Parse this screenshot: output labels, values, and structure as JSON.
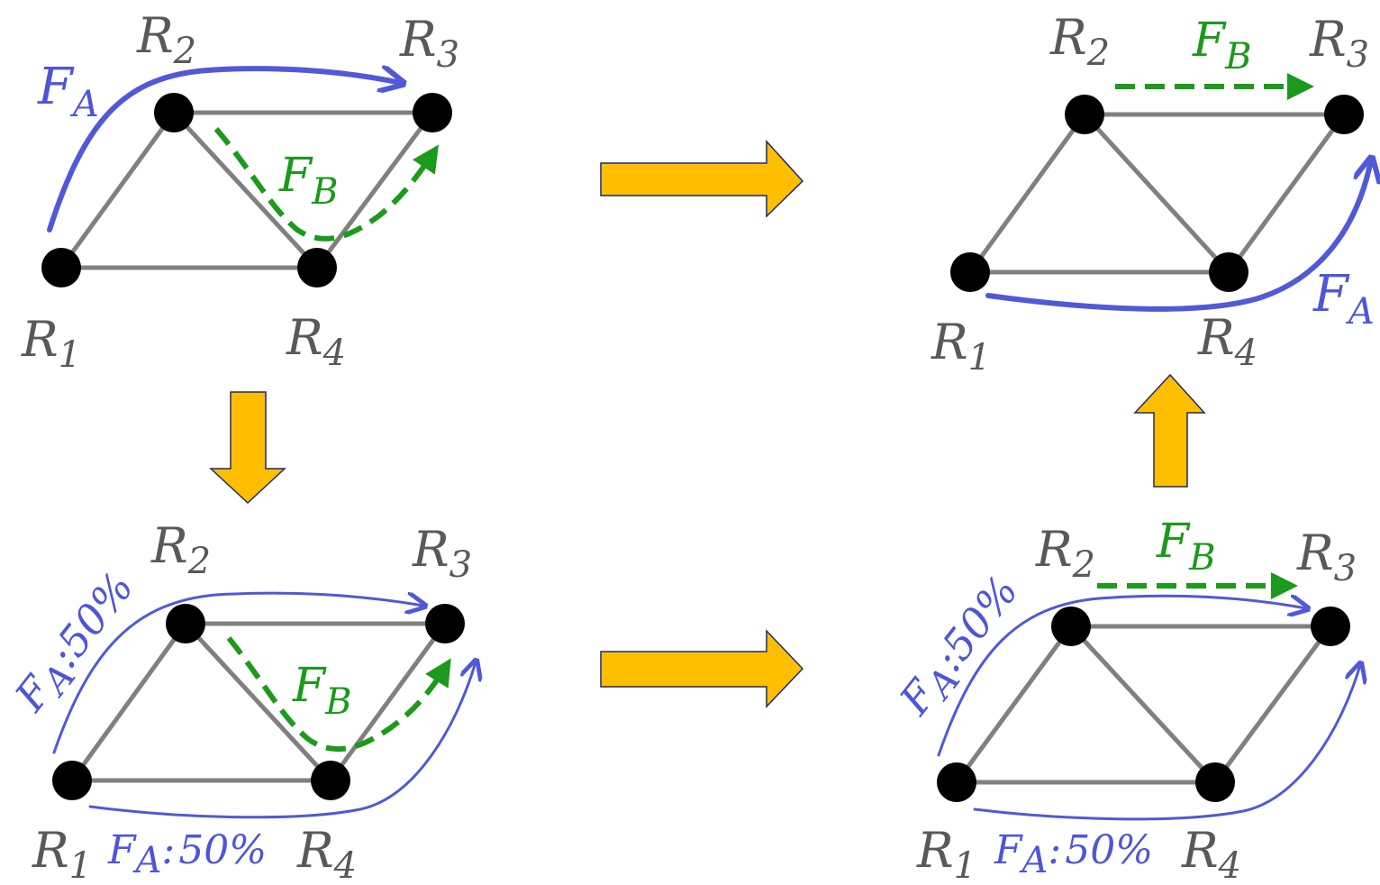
{
  "routers": {
    "r1": {
      "main": "R",
      "sub": "1"
    },
    "r2": {
      "main": "R",
      "sub": "2"
    },
    "r3": {
      "main": "R",
      "sub": "3"
    },
    "r4": {
      "main": "R",
      "sub": "4"
    }
  },
  "flows": {
    "fa": {
      "main": "F",
      "sub": "A"
    },
    "fb": {
      "main": "F",
      "sub": "B"
    },
    "split_percent": "50%",
    "split_sep": ":"
  },
  "colors": {
    "flow_a": "#5059d8",
    "flow_b": "#1b9a1b",
    "transition_arrow": "#ffbf00",
    "edge": "#808080",
    "node": "#000000"
  },
  "panels": [
    {
      "id": "top-left",
      "description_state": "initial"
    },
    {
      "id": "top-right",
      "description_state": "final"
    },
    {
      "id": "bottom-left",
      "description_state": "split"
    },
    {
      "id": "bottom-right",
      "description_state": "split-moved"
    }
  ]
}
